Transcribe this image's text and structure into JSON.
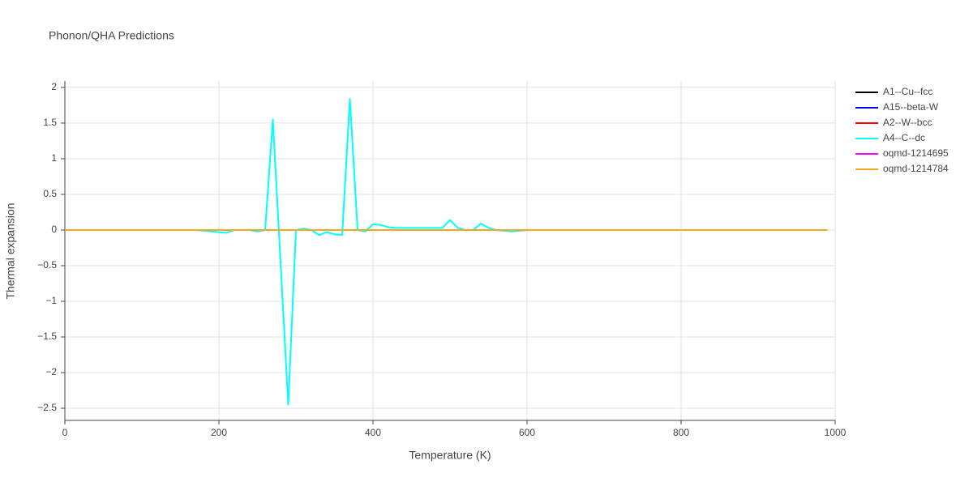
{
  "chart_data": {
    "type": "line",
    "title": "Phonon/QHA Predictions",
    "x_label": "Temperature (K)",
    "y_label": "Thermal expansion",
    "x": [
      0,
      10,
      20,
      30,
      40,
      50,
      60,
      70,
      80,
      90,
      100,
      110,
      120,
      130,
      140,
      150,
      160,
      170,
      180,
      190,
      200,
      210,
      220,
      230,
      240,
      250,
      260,
      270,
      280,
      290,
      300,
      310,
      320,
      330,
      340,
      350,
      360,
      370,
      380,
      390,
      400,
      410,
      420,
      430,
      440,
      450,
      460,
      470,
      480,
      490,
      500,
      510,
      520,
      530,
      540,
      550,
      560,
      570,
      580,
      590,
      600,
      610,
      620,
      630,
      640,
      650,
      660,
      670,
      680,
      690,
      700,
      710,
      720,
      730,
      740,
      750,
      760,
      770,
      780,
      790,
      800,
      810,
      820,
      830,
      840,
      850,
      860,
      870,
      880,
      890,
      900,
      910,
      920,
      930,
      940,
      950,
      960,
      970,
      980,
      990
    ],
    "series": [
      {
        "name": "A1--Cu--fcc",
        "color": "#000000",
        "values": [
          0,
          0,
          0,
          0,
          0,
          0,
          0,
          0,
          0,
          0,
          0,
          0,
          0,
          0,
          0,
          0,
          0,
          0,
          0,
          0,
          0,
          0,
          0,
          0,
          0,
          0,
          0,
          0,
          0,
          0,
          0,
          0,
          0,
          0,
          0,
          0,
          0,
          0,
          0,
          0,
          0,
          0,
          0,
          0,
          0,
          0,
          0,
          0,
          0,
          0,
          0,
          0,
          0,
          0,
          0,
          0,
          0,
          0,
          0,
          0,
          0,
          0,
          0,
          0,
          0,
          0,
          0,
          0,
          0,
          0,
          0,
          0,
          0,
          0,
          0,
          0,
          0,
          0,
          0,
          0,
          0,
          0,
          0,
          0,
          0,
          0,
          0,
          0,
          0,
          0,
          0,
          0,
          0,
          0,
          0,
          0,
          0,
          0,
          0,
          0
        ]
      },
      {
        "name": "A15--beta-W",
        "color": "#0000ff",
        "values": [
          0,
          0,
          0,
          0,
          0,
          0,
          0,
          0,
          0,
          0,
          0,
          0,
          0,
          0,
          0,
          0,
          0,
          0,
          0,
          0,
          0,
          0,
          0,
          0,
          0,
          0,
          0,
          0,
          0,
          0,
          0,
          0,
          0,
          0,
          0,
          0,
          0,
          0,
          0,
          0,
          0,
          0,
          0,
          0,
          0,
          0,
          0,
          0,
          0,
          0,
          0,
          0,
          0,
          0,
          0,
          0,
          0,
          0,
          0,
          0,
          0,
          0,
          0,
          0,
          0,
          0,
          0,
          0,
          0,
          0,
          0,
          0,
          0,
          0,
          0,
          0,
          0,
          0,
          0,
          0,
          0,
          0,
          0,
          0,
          0,
          0,
          0,
          0,
          0,
          0,
          0,
          0,
          0,
          0,
          0,
          0,
          0,
          0,
          0,
          0
        ]
      },
      {
        "name": "A2--W--bcc",
        "color": "#ff0000",
        "values": [
          0,
          0,
          0,
          0,
          0,
          0,
          0,
          0,
          0,
          0,
          0,
          0,
          0,
          0,
          0,
          0,
          0,
          0,
          0,
          0,
          0,
          0,
          0,
          0,
          0,
          0,
          0,
          0,
          0,
          0,
          0,
          0,
          0,
          0,
          0,
          0,
          0,
          0,
          0,
          0,
          0,
          0,
          0,
          0,
          0,
          0,
          0,
          0,
          0,
          0,
          0,
          0,
          0,
          0,
          0,
          0,
          0,
          0,
          0,
          0,
          0,
          0,
          0,
          0,
          0,
          0,
          0,
          0,
          0,
          0,
          0,
          0,
          0,
          0,
          0,
          0,
          0,
          0,
          0,
          0,
          0,
          0,
          0,
          0,
          0,
          0,
          0,
          0,
          0,
          0,
          0,
          0,
          0,
          0,
          0,
          0,
          0,
          0,
          0,
          0
        ]
      },
      {
        "name": "A4--C--dc",
        "color": "#00ffff",
        "values": [
          0,
          0,
          0,
          0,
          0,
          0,
          0,
          0,
          0,
          0,
          0,
          0,
          0,
          0,
          0,
          0,
          0,
          0,
          -0.01,
          -0.02,
          -0.03,
          -0.04,
          0,
          0,
          0,
          -0.02,
          0,
          1.55,
          -0.45,
          -2.45,
          0,
          0.02,
          0,
          -0.07,
          -0.03,
          -0.06,
          -0.07,
          1.84,
          0,
          -0.02,
          0.08,
          0.07,
          0.04,
          0.03,
          0.03,
          0.03,
          0.03,
          0.03,
          0.03,
          0.03,
          0.14,
          0.03,
          0,
          0,
          0.09,
          0.03,
          0,
          -0.01,
          -0.02,
          -0.01,
          0,
          0,
          0,
          0,
          0,
          0,
          0,
          0,
          0,
          0,
          0,
          0,
          0,
          0,
          0,
          0,
          0,
          0,
          0,
          0,
          0,
          0,
          0,
          0,
          0,
          0,
          0,
          0,
          0,
          0,
          0,
          0,
          0,
          0,
          0,
          0,
          0,
          0,
          0,
          0
        ]
      },
      {
        "name": "oqmd-1214695",
        "color": "#ff00ff",
        "values": [
          0,
          0,
          0,
          0,
          0,
          0,
          0,
          0,
          0,
          0,
          0,
          0,
          0,
          0,
          0,
          0,
          0,
          0,
          0,
          0,
          0,
          0,
          0,
          0,
          0,
          0,
          0,
          0,
          0,
          0,
          0,
          0,
          0,
          0,
          0,
          0,
          0,
          0,
          0,
          0,
          0,
          0,
          0,
          0,
          0,
          0,
          0,
          0,
          0,
          0,
          0,
          0,
          0,
          0,
          0,
          0,
          0,
          0,
          0,
          0,
          0,
          0,
          0,
          0,
          0,
          0,
          0,
          0,
          0,
          0,
          0,
          0,
          0,
          0,
          0,
          0,
          0,
          0,
          0,
          0,
          0,
          0,
          0,
          0,
          0,
          0,
          0,
          0,
          0,
          0,
          0,
          0,
          0,
          0,
          0,
          0,
          0,
          0,
          0,
          0
        ]
      },
      {
        "name": "oqmd-1214784",
        "color": "#f5a623",
        "values": [
          0,
          0,
          0,
          0,
          0,
          0,
          0,
          0,
          0,
          0,
          0,
          0,
          0,
          0,
          0,
          0,
          0,
          0,
          0,
          0,
          0,
          0,
          0,
          0,
          0,
          0,
          0,
          0,
          0,
          0,
          0,
          0,
          0,
          0,
          0,
          0,
          0,
          0,
          0,
          0,
          0,
          0,
          0,
          0,
          0,
          0,
          0,
          0,
          0,
          0,
          0,
          0,
          0,
          0,
          0,
          0,
          0,
          0,
          0,
          0,
          0,
          0,
          0,
          0,
          0,
          0,
          0,
          0,
          0,
          0,
          0,
          0,
          0,
          0,
          0,
          0,
          0,
          0,
          0,
          0,
          0,
          0,
          0,
          0,
          0,
          0,
          0,
          0,
          0,
          0,
          0,
          0,
          0,
          0,
          0,
          0,
          0,
          0,
          0,
          0
        ]
      }
    ],
    "xlim": [
      0,
      1000
    ],
    "xticks": [
      0,
      200,
      400,
      600,
      800,
      1000
    ],
    "ylim": [
      -2.67,
      2.09
    ],
    "yticks": [
      2,
      1.5,
      1,
      0.5,
      0,
      {
        "value": -0.5,
        "label": "−0.5"
      },
      {
        "value": -1,
        "label": "−1"
      },
      {
        "value": -1.5,
        "label": "−1.5"
      },
      {
        "value": -2,
        "label": "−2"
      },
      {
        "value": -2.5,
        "label": "−2.5"
      }
    ],
    "grid": true
  }
}
